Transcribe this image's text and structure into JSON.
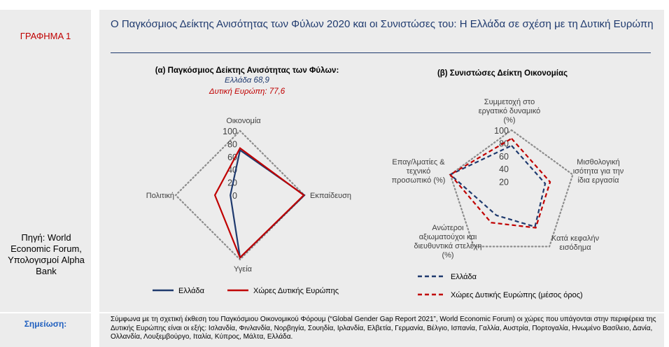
{
  "sidebar": {
    "figure_label": "ΓΡΑΦΗΜΑ 1",
    "source": "Πηγή: World Economic Forum, Υπολογισμοί Alpha Bank"
  },
  "title": "Ο Παγκόσμιος Δείκτης Ανισότητας των Φύλων 2020 και οι Συνιστώσες του: Η Ελλάδα σε σχέση με τη Δυτική Ευρώπη",
  "note": {
    "label": "Σημείωση:",
    "text": "Σύμφωνα με τη σχετική έκθεση του Παγκόσμιου Οικονομικού Φόρουμ (“Global Gender Gap Report 2021”, World Economic Forum) οι χώρες που υπάγονται στην περιφέρεια της Δυτικής Ευρώπης είναι οι εξής: Ισλανδία, Φινλανδία, Νορβηγία, Σουηδία, Ιρλανδία, Ελβετία, Γερμανία, Βέλγιο, Ισπανία, Γαλλία, Αυστρία, Πορτογαλία, Ηνωμένο Βασίλειο, Δανία, Ολλανδία, Λουξεμβούργο, Ιταλία, Κύπρος, Μάλτα, Ελλάδα."
  },
  "colors": {
    "greece": "#1f3a6e",
    "western_europe": "#c00000",
    "grid": "#8c8c8c"
  },
  "chart_data": [
    {
      "type": "radar",
      "title": "(α) Παγκόσμιος Δείκτης Ανισότητας των Φύλων:",
      "subtitle_greece": "Ελλάδα 68,9",
      "subtitle_west": "Δυτική Ευρώπη: 77,6",
      "axes": [
        "Οικονομία",
        "Εκπαίδευση",
        "Υγεία",
        "Πολιτική"
      ],
      "ticks": [
        "0",
        "20",
        "40",
        "60",
        "80",
        "100"
      ],
      "range": [
        0,
        100
      ],
      "grid": "outer-dotted",
      "series": [
        {
          "name": "Ελλάδα",
          "values": [
            70,
            100,
            97,
            15
          ],
          "style": "solid"
        },
        {
          "name": "Χώρες Δυτικής Ευρώπης",
          "values": [
            73,
            99,
            97,
            39
          ],
          "style": "solid"
        }
      ],
      "legend": "bottom"
    },
    {
      "type": "radar",
      "title": "(β) Συνιστώσες Δείκτη Οικονομίας",
      "axes": [
        "Συμμετοχή στο εργατικό δυναμικό (%)",
        "Μισθολογική ισότητα για την ίδια εργασία",
        "Κατά κεφαλήν εισόδημα",
        "Ανώτεροι αξιωματούχοι και διευθυντικά στελέχη (%)",
        "Επαγ/λματίες & τεχνικό προσωπικό (%)"
      ],
      "ticks": [
        "20",
        "40",
        "60",
        "80",
        "100"
      ],
      "range": [
        0,
        100
      ],
      "grid": "outer-dotted",
      "series": [
        {
          "name": "Ελλάδα",
          "values": [
            76,
            55,
            62,
            40,
            100
          ],
          "style": "dashed"
        },
        {
          "name": "Χώρες Δυτικής Ευρώπης (μέσος όρος)",
          "values": [
            87,
            63,
            64,
            54,
            100
          ],
          "style": "dashed"
        }
      ],
      "legend": "bottom"
    }
  ]
}
